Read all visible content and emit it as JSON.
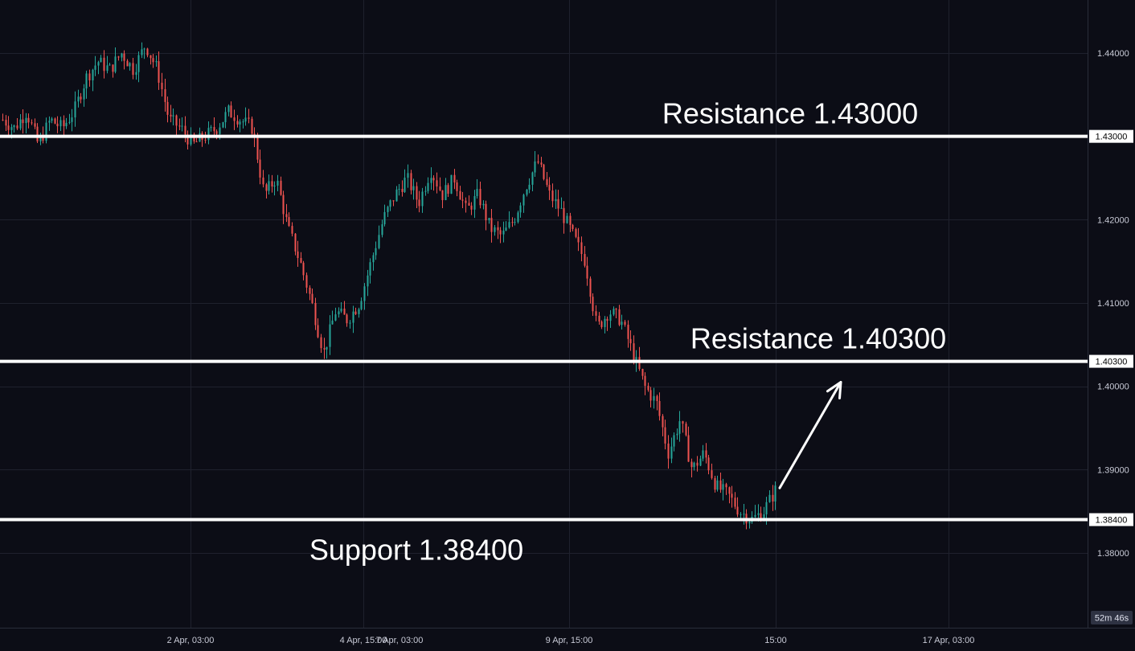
{
  "chart_data": {
    "type": "candlestick",
    "y_ticks": [
      "1.44000",
      "1.42000",
      "1.41000",
      "1.40000",
      "1.39000",
      "1.38000"
    ],
    "x_ticks": [
      "2 Apr, 03:00",
      "4 Apr, 15:00",
      "7 Apr, 03:00",
      "9 Apr, 15:00",
      "15:00",
      "17 Apr, 03:00"
    ],
    "ylim": [
      1.3725,
      1.4455
    ],
    "grid": true,
    "levels": [
      {
        "kind": "resistance",
        "price": 1.43,
        "price_label": "1.43000",
        "text": "Resistance 1.43000"
      },
      {
        "kind": "resistance",
        "price": 1.403,
        "price_label": "1.40300",
        "text": "Resistance 1.40300"
      },
      {
        "kind": "support",
        "price": 1.384,
        "price_label": "1.38400",
        "text": "Support 1.38400"
      }
    ],
    "arrow": {
      "from_price": 1.3878,
      "to_price": 1.4005,
      "direction": "up"
    },
    "countdown": "52m 46s",
    "colors": {
      "up": "#26a69a",
      "down": "#ef5350",
      "background": "#0c0d16",
      "grid": "#1f212d",
      "level": "#ffffff"
    },
    "close_path": [
      1.432,
      1.431,
      1.433,
      1.429,
      1.432,
      1.431,
      1.433,
      1.437,
      1.439,
      1.438,
      1.44,
      1.438,
      1.441,
      1.438,
      1.432,
      1.431,
      1.429,
      1.43,
      1.431,
      1.433,
      1.432,
      1.431,
      1.423,
      1.425,
      1.419,
      1.415,
      1.41,
      1.404,
      1.409,
      1.408,
      1.41,
      1.415,
      1.42,
      1.423,
      1.425,
      1.422,
      1.426,
      1.423,
      1.425,
      1.421,
      1.423,
      1.419,
      1.418,
      1.42,
      1.424,
      1.427,
      1.423,
      1.421,
      1.418,
      1.415,
      1.407,
      1.409,
      1.408,
      1.404,
      1.4,
      1.398,
      1.392,
      1.396,
      1.39,
      1.392,
      1.388,
      1.387,
      1.385,
      1.384,
      1.385,
      1.3875
    ]
  }
}
